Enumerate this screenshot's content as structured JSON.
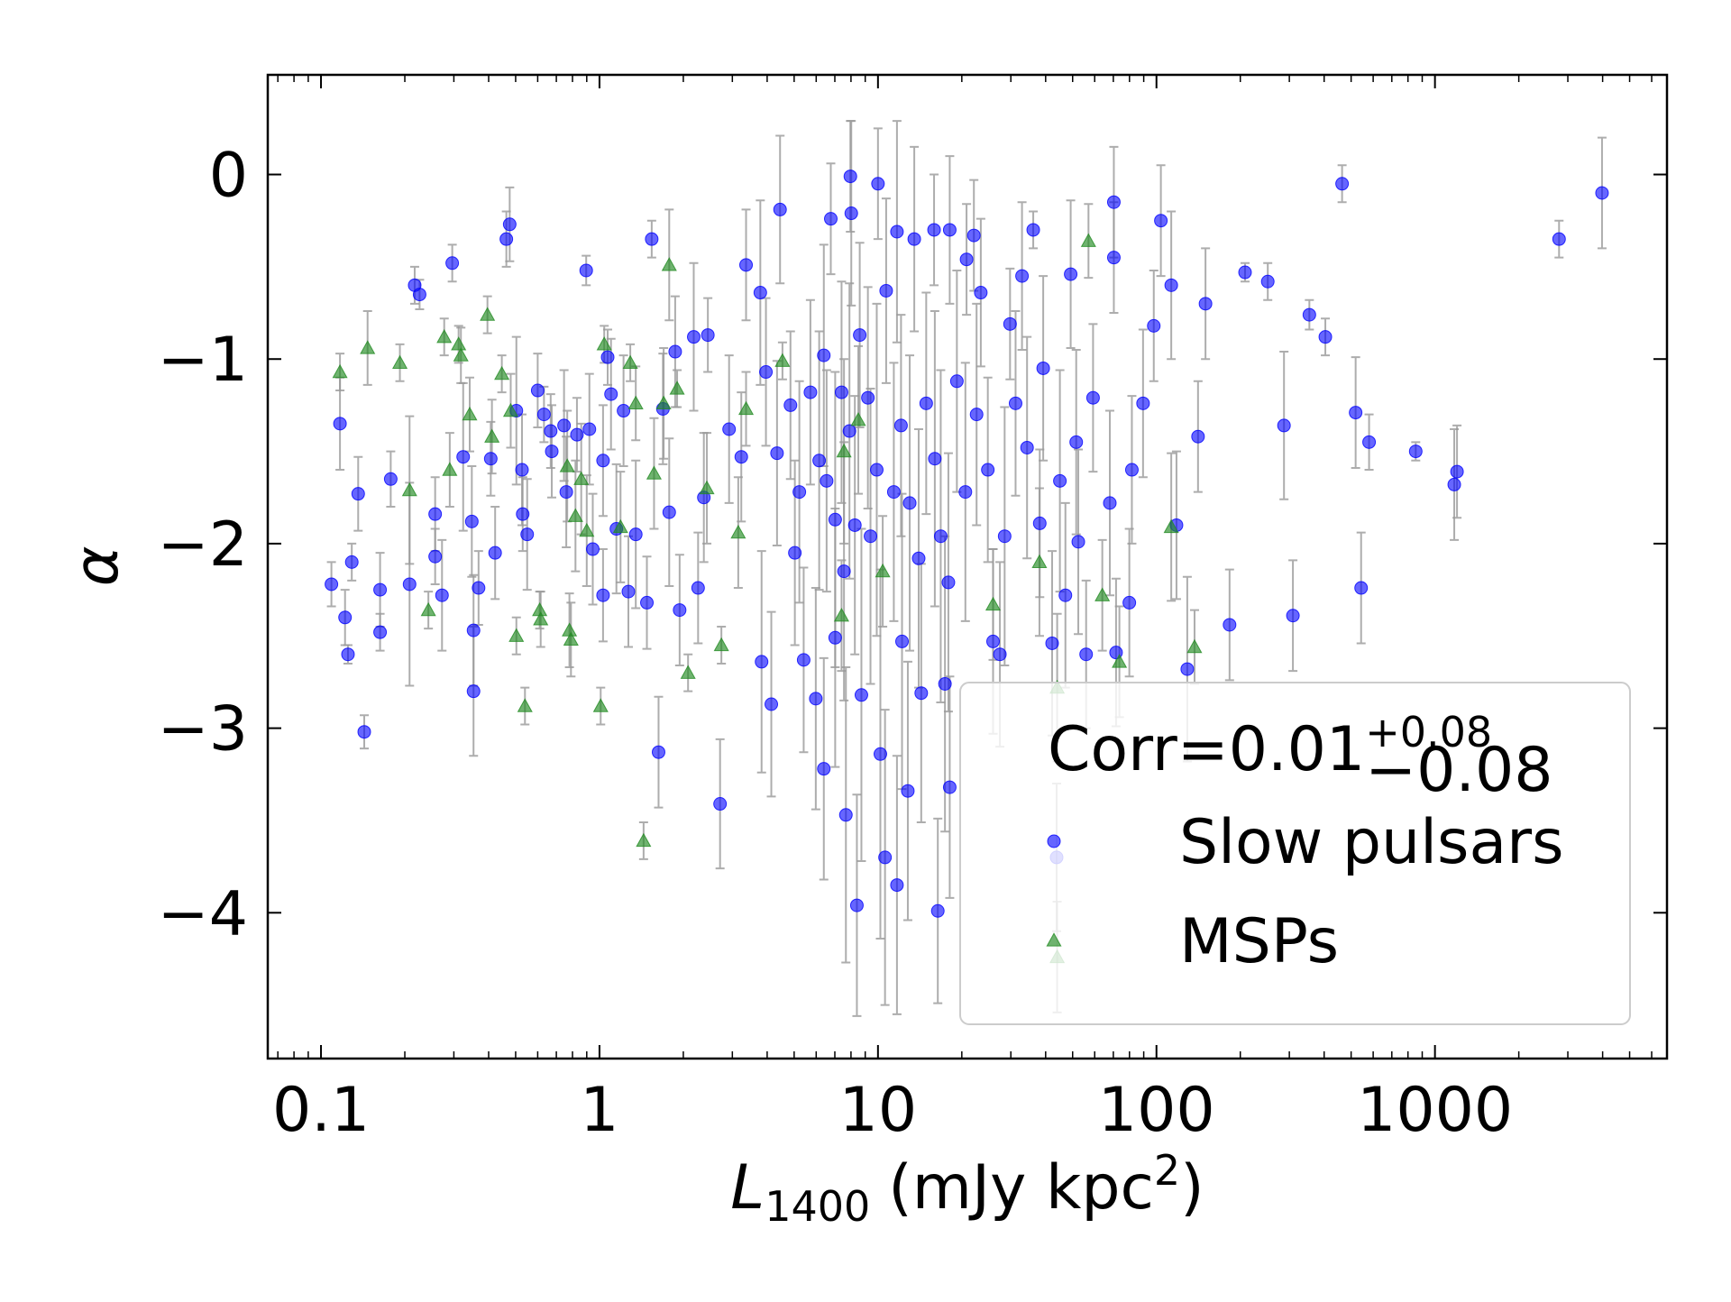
{
  "chart_data": {
    "type": "scatter",
    "xlabel": {
      "symbol": "L",
      "subscript": "1400",
      "unit": "(mJy kpc",
      "superscript": "2",
      "close": ")"
    },
    "ylabel": "α",
    "xscale": "log",
    "xlim": [
      0.0644,
      6810
    ],
    "ylim": [
      -4.79,
      0.54
    ],
    "xticks": [
      0.1,
      1,
      10,
      100,
      1000
    ],
    "xminorticks": [
      0.07,
      0.08,
      0.09,
      0.2,
      0.3,
      0.4,
      0.5,
      0.6,
      0.7,
      0.8,
      0.9,
      2,
      3,
      4,
      5,
      6,
      7,
      8,
      9,
      20,
      30,
      40,
      50,
      60,
      70,
      80,
      90,
      200,
      300,
      400,
      500,
      600,
      700,
      800,
      900,
      2000,
      3000,
      4000,
      5000,
      6000
    ],
    "yticks": [
      {
        "value": -4,
        "label": "−4"
      },
      {
        "value": -3,
        "label": "−3"
      },
      {
        "value": -2,
        "label": "−2"
      },
      {
        "value": -1,
        "label": "−1"
      },
      0
    ],
    "legend": {
      "loc": "lower right",
      "title": {
        "text": "Corr=0.01",
        "upper": "+0.08",
        "lower": "−0.08"
      }
    },
    "errorbar_color": "#999999",
    "series": [
      {
        "name": "Slow pulsars",
        "color": "#0000ff",
        "marker": "circle",
        "x": [
          0.109,
          0.117,
          0.122,
          0.125,
          0.129,
          0.136,
          0.143,
          0.163,
          0.163,
          0.178,
          0.208,
          0.217,
          0.226,
          0.257,
          0.257,
          0.272,
          0.296,
          0.324,
          0.348,
          0.353,
          0.353,
          0.368,
          0.407,
          0.422,
          0.463,
          0.476,
          0.503,
          0.527,
          0.53,
          0.55,
          0.6,
          0.632,
          0.668,
          0.674,
          0.746,
          0.76,
          0.83,
          0.896,
          0.92,
          0.946,
          1.03,
          1.03,
          1.07,
          1.1,
          1.15,
          1.22,
          1.27,
          1.35,
          1.48,
          1.54,
          1.63,
          1.69,
          1.78,
          1.87,
          1.94,
          2.18,
          2.26,
          2.37,
          2.45,
          2.71,
          2.92,
          3.23,
          3.36,
          3.78,
          3.82,
          4.14,
          4.45,
          5.03,
          5.41,
          5.98,
          6.39,
          6.39,
          6.77,
          7.02,
          7.67,
          7.96,
          8.02,
          8.4,
          8.72,
          10,
          10.2,
          10.6,
          11.7,
          11.7,
          12.2,
          12.8,
          13.5,
          14.3,
          15.9,
          16.4,
          17.4,
          18.1,
          18.1,
          20.8,
          22.1,
          23.4,
          25.9,
          27.4,
          29.8,
          32.9,
          36.1,
          38.1,
          42.2,
          43.8,
          47.1,
          49.2,
          52.4,
          55.9,
          70.3,
          70.3,
          71.6,
          79.9,
          97.8,
          103.7,
          113,
          129,
          150,
          183,
          208,
          251,
          287,
          309,
          354,
          404,
          464,
          519,
          543,
          580,
          853,
          1173,
          1200,
          2790,
          3980,
          3.96,
          4.34,
          4.85,
          5.22,
          5.72,
          6.15,
          6.54,
          7.02,
          7.4,
          7.55,
          7.9,
          8.26,
          8.6,
          9.2,
          9.4,
          9.9,
          10.7,
          11.4,
          12.1,
          13,
          14,
          14.9,
          16,
          16.8,
          17.9,
          19.2,
          20.6,
          22.6,
          24.8,
          28.5,
          31.2,
          34.3,
          39.2,
          45,
          51.5,
          59.2,
          68,
          81.6,
          89.5,
          118,
          141
        ],
        "values": [
          -2.22,
          -1.35,
          -2.4,
          -2.6,
          -2.1,
          -1.73,
          -3.02,
          -2.25,
          -2.48,
          -1.65,
          -2.22,
          -0.6,
          -0.65,
          -1.84,
          -2.07,
          -2.28,
          -0.48,
          -1.53,
          -1.88,
          -2.8,
          -2.47,
          -2.24,
          -1.54,
          -2.05,
          -0.35,
          -0.27,
          -1.28,
          -1.6,
          -1.84,
          -1.95,
          -1.17,
          -1.3,
          -1.39,
          -1.5,
          -1.36,
          -1.72,
          -1.41,
          -0.52,
          -1.38,
          -2.03,
          -2.28,
          -1.55,
          -0.99,
          -1.19,
          -1.92,
          -1.28,
          -2.26,
          -1.95,
          -2.32,
          -0.35,
          -3.13,
          -1.27,
          -1.83,
          -0.96,
          -2.36,
          -0.88,
          -2.24,
          -1.75,
          -0.87,
          -3.41,
          -1.38,
          -1.53,
          -0.49,
          -0.64,
          -2.64,
          -2.87,
          -0.19,
          -2.05,
          -2.63,
          -2.84,
          -0.98,
          -3.22,
          -0.24,
          -2.51,
          -3.47,
          -0.01,
          -0.21,
          -3.96,
          -2.82,
          -0.05,
          -3.14,
          -3.7,
          -0.31,
          -3.85,
          -2.53,
          -3.34,
          -0.35,
          -2.81,
          -0.3,
          -3.99,
          -2.76,
          -0.3,
          -3.32,
          -0.46,
          -0.33,
          -0.64,
          -2.53,
          -2.6,
          -0.81,
          -0.55,
          -0.3,
          -1.89,
          -2.54,
          -3.7,
          -2.28,
          -0.54,
          -1.99,
          -2.6,
          -0.15,
          -0.45,
          -2.59,
          -2.32,
          -0.82,
          -0.25,
          -0.6,
          -2.68,
          -0.7,
          -2.44,
          -0.53,
          -0.58,
          -1.36,
          -2.39,
          -0.76,
          -0.88,
          -0.05,
          -1.29,
          -2.24,
          -1.45,
          -1.5,
          -1.68,
          -1.61,
          -0.35,
          -0.1,
          -1.07,
          -1.51,
          -1.25,
          -1.72,
          -1.18,
          -1.55,
          -1.66,
          -1.87,
          -1.18,
          -2.15,
          -1.39,
          -1.9,
          -0.87,
          -1.21,
          -1.96,
          -1.6,
          -0.63,
          -1.72,
          -1.36,
          -1.78,
          -2.08,
          -1.24,
          -1.54,
          -1.96,
          -2.21,
          -1.12,
          -1.72,
          -1.3,
          -1.6,
          -1.96,
          -1.24,
          -1.48,
          -1.05,
          -1.66,
          -1.45,
          -1.21,
          -1.78,
          -1.6,
          -1.24,
          -1.9,
          -1.42
        ],
        "errors": [
          0.12,
          0.25,
          0.15,
          0.05,
          0.1,
          0.2,
          0.09,
          0.2,
          0.1,
          0.15,
          0.55,
          0.1,
          0.08,
          0.2,
          0.15,
          0.3,
          0.1,
          0.4,
          0.3,
          0.35,
          0.3,
          0.2,
          0.2,
          0.25,
          0.15,
          0.2,
          0.4,
          0.3,
          0.2,
          0.3,
          0.2,
          0.15,
          0.2,
          0.25,
          0.3,
          0.3,
          0.2,
          0.08,
          0.3,
          0.3,
          0.25,
          0.3,
          0.15,
          0.3,
          0.35,
          0.3,
          0.3,
          0.4,
          0.25,
          0.1,
          0.3,
          0.3,
          0.4,
          0.3,
          0.3,
          0.4,
          0.3,
          0.35,
          0.2,
          0.35,
          0.4,
          0.35,
          0.3,
          0.5,
          0.6,
          0.5,
          0.4,
          0.5,
          0.5,
          0.6,
          0.6,
          0.6,
          0.3,
          0.7,
          0.8,
          0.3,
          0.5,
          0.6,
          0.9,
          0.3,
          1.0,
          0.8,
          0.6,
          0.7,
          0.8,
          0.7,
          0.5,
          0.7,
          0.3,
          0.5,
          0.8,
          0.4,
          0.6,
          0.3,
          0.3,
          0.4,
          0.5,
          0.5,
          0.3,
          0.4,
          0.1,
          0.4,
          0.5,
          0.4,
          0.5,
          0.4,
          0.5,
          0.4,
          0.3,
          0.3,
          0.4,
          0.4,
          0.3,
          0.3,
          0.4,
          0.5,
          0.3,
          0.3,
          0.05,
          0.1,
          0.4,
          0.3,
          0.08,
          0.1,
          0.1,
          0.3,
          0.3,
          0.15,
          0.05,
          0.3,
          0.25,
          0.1,
          0.3,
          0.4,
          0.5,
          0.4,
          0.6,
          0.5,
          0.7,
          0.6,
          0.8,
          0.6,
          0.7,
          0.8,
          0.7,
          0.5,
          0.6,
          0.8,
          0.9,
          0.5,
          0.7,
          0.6,
          0.8,
          0.7,
          0.6,
          0.8,
          0.9,
          0.7,
          0.6,
          0.7,
          0.6,
          0.5,
          0.7,
          0.5,
          0.6,
          0.5,
          0.6,
          0.5,
          0.4,
          0.5,
          0.4,
          0.4,
          0.4,
          0.3
        ]
      },
      {
        "name": "MSPs",
        "color": "#228b22",
        "marker": "triangle",
        "x": [
          0.117,
          0.147,
          0.192,
          0.208,
          0.243,
          0.277,
          0.29,
          0.312,
          0.318,
          0.342,
          0.396,
          0.411,
          0.446,
          0.48,
          0.503,
          0.54,
          0.61,
          0.615,
          0.766,
          0.78,
          0.79,
          0.82,
          0.86,
          0.9,
          1.01,
          1.04,
          1.19,
          1.29,
          1.35,
          1.44,
          1.57,
          1.7,
          1.78,
          1.9,
          2.08,
          2.43,
          2.74,
          3.15,
          3.36,
          4.54,
          7.4,
          7.55,
          8.5,
          10.4,
          25.9,
          38,
          44,
          44,
          57,
          63.9,
          73.6,
          113,
          137
        ],
        "values": [
          -1.07,
          -0.94,
          -1.02,
          -1.71,
          -2.36,
          -0.88,
          -1.6,
          -0.92,
          -0.98,
          -1.3,
          -0.76,
          -1.42,
          -1.08,
          -1.28,
          -2.5,
          -2.88,
          -2.36,
          -2.41,
          -1.58,
          -2.47,
          -2.52,
          -1.85,
          -1.65,
          -1.93,
          -2.88,
          -0.92,
          -1.91,
          -1.02,
          -1.24,
          -3.61,
          -1.62,
          -1.24,
          -0.49,
          -1.16,
          -2.7,
          -1.7,
          -2.55,
          -1.94,
          -1.27,
          -1.01,
          -2.39,
          -1.5,
          -1.33,
          -2.15,
          -2.33,
          -2.1,
          -2.78,
          -4.24,
          -0.36,
          -2.28,
          -2.64,
          -1.91,
          -2.56
        ],
        "errors": [
          0.1,
          0.2,
          0.1,
          0.4,
          0.1,
          0.1,
          0.2,
          0.1,
          0.15,
          0.2,
          0.1,
          0.2,
          0.1,
          0.2,
          0.1,
          0.1,
          0.1,
          0.15,
          0.3,
          0.2,
          0.2,
          0.3,
          0.3,
          0.3,
          0.1,
          0.1,
          0.3,
          0.1,
          0.2,
          0.1,
          0.3,
          0.3,
          0.3,
          0.1,
          0.1,
          0.3,
          0.1,
          0.3,
          0.2,
          0.1,
          0.3,
          0.5,
          0.4,
          0.3,
          0.3,
          0.4,
          0.4,
          0.3,
          0.2,
          0.3,
          0.3,
          0.4,
          0.2
        ]
      }
    ]
  }
}
